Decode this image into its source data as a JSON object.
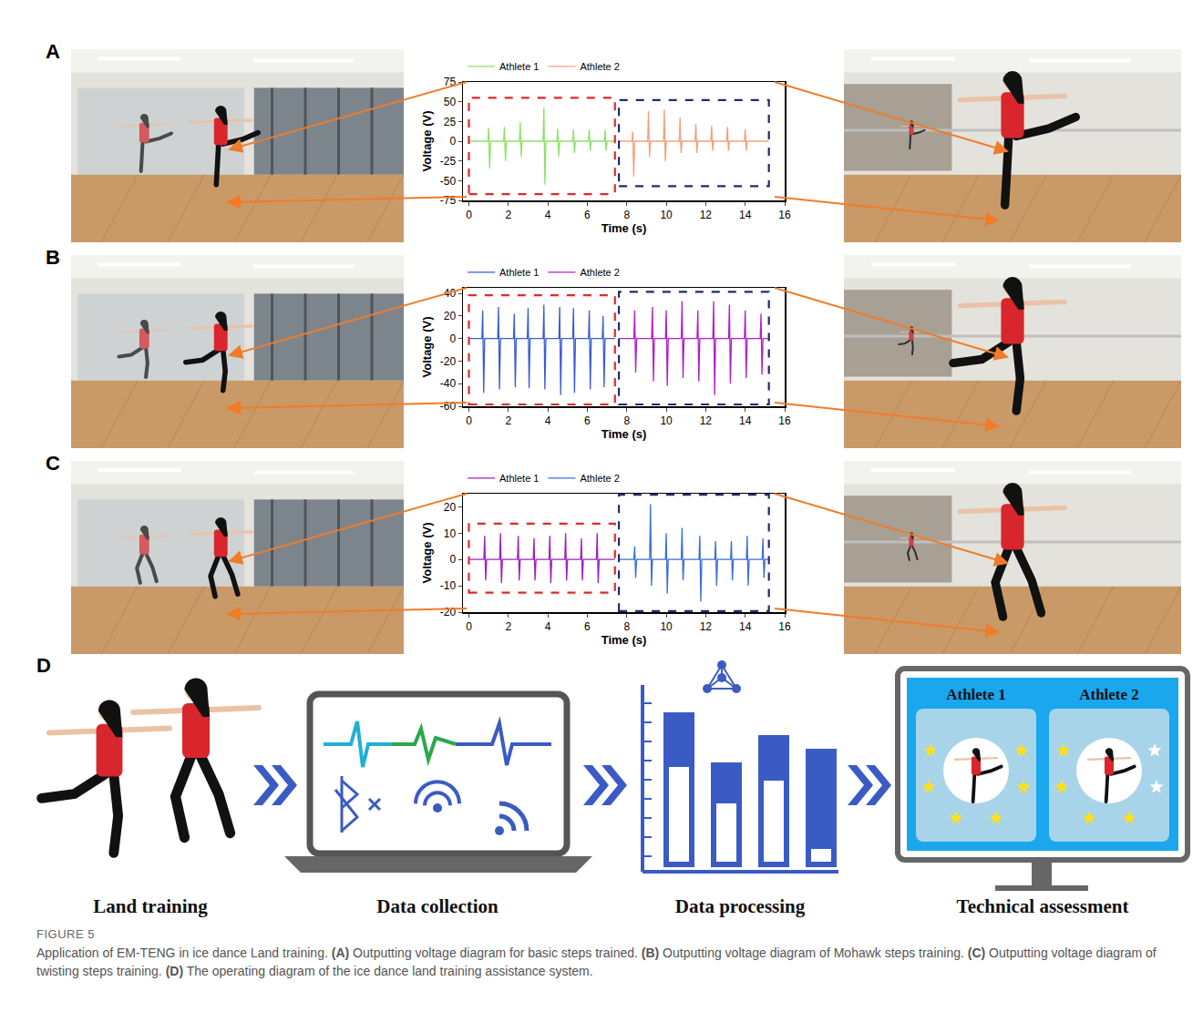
{
  "chart_data": [
    {
      "panel": "A",
      "type": "line",
      "x_title": "Time (s)",
      "y_title": "Voltage (V)",
      "xlim": [
        -0.3,
        16
      ],
      "xticks": [
        0,
        2,
        4,
        6,
        8,
        10,
        12,
        14,
        16
      ],
      "ylim": [
        -75,
        75
      ],
      "yticks": [
        -75,
        -50,
        -25,
        0,
        25,
        50,
        75
      ],
      "grid": false,
      "legend": "top",
      "series": [
        {
          "name": "Athlete 1",
          "color": "#8fe06a",
          "x": [
            0,
            0.96,
            1.0,
            1.05,
            1.1,
            1.76,
            1.8,
            1.85,
            1.9,
            2.56,
            2.6,
            2.65,
            2.7,
            3.76,
            3.8,
            3.85,
            3.9,
            4.46,
            4.5,
            4.55,
            4.6,
            5.26,
            5.3,
            5.35,
            5.4,
            6.06,
            6.1,
            6.15,
            6.2,
            6.86,
            6.9,
            6.95,
            7.0,
            7.4
          ],
          "values": [
            0,
            0,
            17,
            -35,
            0,
            0,
            18,
            -25,
            0,
            0,
            24,
            -20,
            0,
            0,
            43,
            -55,
            0,
            0,
            16,
            -20,
            0,
            0,
            15,
            -15,
            0,
            0,
            15,
            -12,
            0,
            0,
            14,
            -12,
            0,
            0
          ]
        },
        {
          "name": "Athlete 2",
          "color": "#f5a07a",
          "x": [
            7.6,
            8.26,
            8.3,
            8.35,
            8.4,
            9.06,
            9.1,
            9.15,
            9.2,
            9.86,
            9.9,
            9.95,
            10.0,
            10.66,
            10.7,
            10.75,
            10.8,
            11.46,
            11.5,
            11.55,
            11.6,
            12.26,
            12.3,
            12.35,
            12.4,
            13.06,
            13.1,
            13.15,
            13.2,
            13.96,
            14.0,
            14.05,
            14.1,
            15.2
          ],
          "values": [
            0,
            0,
            12,
            -45,
            0,
            0,
            38,
            -20,
            0,
            0,
            40,
            -25,
            0,
            0,
            30,
            -15,
            0,
            0,
            22,
            -15,
            0,
            0,
            20,
            -12,
            0,
            0,
            18,
            -12,
            0,
            0,
            15,
            -12,
            0,
            0
          ]
        }
      ]
    },
    {
      "panel": "B",
      "type": "line",
      "x_title": "Time (s)",
      "y_title": "Voltage (V)",
      "xlim": [
        -0.3,
        16
      ],
      "xticks": [
        0,
        2,
        4,
        6,
        8,
        10,
        12,
        14,
        16
      ],
      "ylim": [
        -60,
        45
      ],
      "yticks": [
        -60,
        -40,
        -20,
        0,
        20,
        40
      ],
      "grid": false,
      "legend": "top",
      "series": [
        {
          "name": "Athlete 1",
          "color": "#3a5bd9",
          "x": [
            0,
            0.66,
            0.7,
            0.75,
            0.8,
            1.46,
            1.5,
            1.55,
            1.6,
            2.26,
            2.3,
            2.35,
            2.4,
            2.96,
            3.0,
            3.05,
            3.1,
            3.76,
            3.8,
            3.85,
            3.9,
            4.56,
            4.6,
            4.65,
            4.7,
            5.26,
            5.3,
            5.35,
            5.4,
            6.06,
            6.1,
            6.15,
            6.2,
            6.76,
            6.8,
            6.85,
            6.9,
            7.4
          ],
          "values": [
            0,
            0,
            25,
            -48,
            0,
            0,
            28,
            -45,
            0,
            0,
            22,
            -43,
            0,
            0,
            27,
            -44,
            0,
            0,
            30,
            -45,
            0,
            0,
            28,
            -50,
            0,
            0,
            27,
            -48,
            0,
            0,
            25,
            -45,
            0,
            0,
            20,
            -43,
            0,
            0
          ]
        },
        {
          "name": "Athlete 2",
          "color": "#b020c8",
          "x": [
            7.6,
            8.36,
            8.4,
            8.45,
            8.5,
            9.26,
            9.3,
            9.35,
            9.4,
            9.96,
            10.0,
            10.05,
            10.1,
            10.76,
            10.8,
            10.85,
            10.9,
            11.56,
            11.6,
            11.65,
            11.7,
            12.36,
            12.4,
            12.45,
            12.5,
            13.16,
            13.2,
            13.25,
            13.3,
            13.96,
            14.0,
            14.05,
            14.1,
            14.76,
            14.8,
            14.85,
            14.9,
            15.2
          ],
          "values": [
            0,
            0,
            25,
            -30,
            0,
            0,
            28,
            -38,
            0,
            0,
            25,
            -42,
            0,
            0,
            33,
            -35,
            0,
            0,
            25,
            -38,
            0,
            0,
            33,
            -50,
            0,
            0,
            30,
            -40,
            0,
            0,
            25,
            -35,
            0,
            0,
            22,
            -32,
            0,
            0
          ]
        }
      ]
    },
    {
      "panel": "C",
      "type": "line",
      "x_title": "Time (s)",
      "y_title": "Voltage (V)",
      "xlim": [
        -0.3,
        16
      ],
      "xticks": [
        0,
        2,
        4,
        6,
        8,
        10,
        12,
        14,
        16
      ],
      "ylim": [
        -20,
        25
      ],
      "yticks": [
        -20,
        -10,
        0,
        10,
        20
      ],
      "grid": false,
      "legend": "top",
      "series": [
        {
          "name": "Athlete 1",
          "color": "#a020c0",
          "x": [
            0,
            0.76,
            0.8,
            0.85,
            0.9,
            1.56,
            1.6,
            1.65,
            1.7,
            2.46,
            2.5,
            2.55,
            2.6,
            3.26,
            3.3,
            3.35,
            3.4,
            4.06,
            4.1,
            4.15,
            4.2,
            4.86,
            4.9,
            4.95,
            5.0,
            5.66,
            5.7,
            5.75,
            5.8,
            6.46,
            6.5,
            6.55,
            6.6,
            7.4
          ],
          "values": [
            0,
            0,
            9,
            -8,
            0,
            0,
            10,
            -9,
            0,
            0,
            9,
            -8,
            0,
            0,
            8,
            -8,
            0,
            0,
            9,
            -9,
            0,
            0,
            10,
            -8,
            0,
            0,
            8,
            -8,
            0,
            0,
            10,
            -9,
            0,
            0
          ]
        },
        {
          "name": "Athlete 2",
          "color": "#3a6fd8",
          "x": [
            7.6,
            8.36,
            8.4,
            8.45,
            8.5,
            9.16,
            9.2,
            9.25,
            9.3,
            9.96,
            10.0,
            10.05,
            10.1,
            10.76,
            10.8,
            10.85,
            10.9,
            11.66,
            11.7,
            11.75,
            11.8,
            12.46,
            12.5,
            12.55,
            12.6,
            13.26,
            13.3,
            13.35,
            13.4,
            14.06,
            14.1,
            14.15,
            14.2,
            14.86,
            14.9,
            14.95,
            15.0,
            15.2
          ],
          "values": [
            0,
            0,
            5,
            -7,
            0,
            0,
            21,
            -10,
            0,
            0,
            10,
            -13,
            0,
            0,
            12,
            -8,
            0,
            0,
            9,
            -16,
            0,
            0,
            7,
            -10,
            0,
            0,
            7,
            -8,
            0,
            0,
            9,
            -10,
            0,
            0,
            8,
            -7,
            0,
            0
          ]
        }
      ]
    }
  ],
  "diagram": {
    "panel": "D",
    "steps": [
      {
        "label": "Land training"
      },
      {
        "label": "Data collection"
      },
      {
        "label": "Data processing"
      },
      {
        "label": "Technical assessment",
        "athletes": [
          {
            "name": "Athlete 1",
            "stars_filled": 6,
            "stars_total": 6
          },
          {
            "name": "Athlete 2",
            "stars_filled": 4,
            "stars_total": 6
          }
        ]
      }
    ]
  },
  "caption": {
    "label": "FIGURE 5",
    "parts": [
      {
        "text": "Application of EM-TENG in ice dance Land training. "
      },
      {
        "text": "(A)",
        "bold": true
      },
      {
        "text": " Outputting voltage diagram for basic steps trained. "
      },
      {
        "text": "(B)",
        "bold": true
      },
      {
        "text": " Outputting voltage diagram of Mohawk steps training. "
      },
      {
        "text": "(C)",
        "bold": true
      },
      {
        "text": " Outputting voltage diagram of twisting steps training. "
      },
      {
        "text": "(D)",
        "bold": true
      },
      {
        "text": " The operating diagram of the ice dance land training assistance system."
      }
    ]
  }
}
